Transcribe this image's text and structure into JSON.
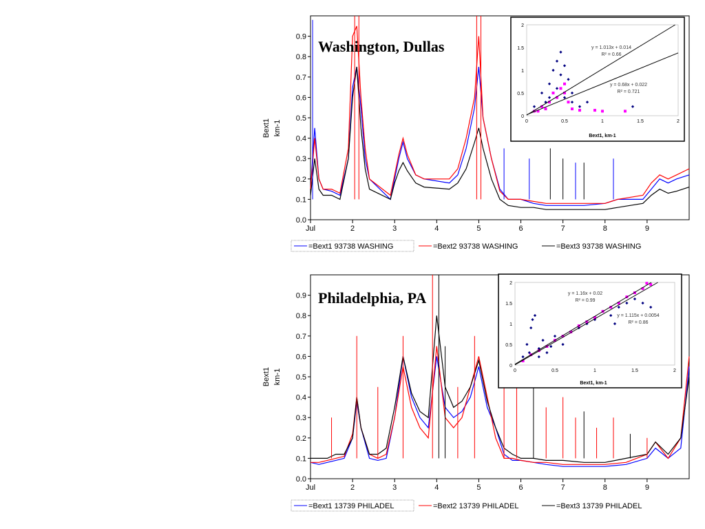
{
  "chart_data": [
    {
      "type": "line",
      "title": "Washington, Dullas",
      "ylabel_line1": "Bext1",
      "ylabel_line2": "km-1",
      "ylim": [
        0,
        1.0
      ],
      "xlim": [
        1,
        10
      ],
      "y_ticks": [
        "0.0",
        "0.1",
        "0.2",
        "0.3",
        "0.4",
        "0.5",
        "0.6",
        "0.7",
        "0.8",
        "0.9"
      ],
      "x_ticks": [
        "Jul",
        "2",
        "3",
        "4",
        "5",
        "6",
        "7",
        "8",
        "9"
      ],
      "legend": [
        "=Bext1 93738 WASHING",
        "=Bext2 93738 WASHING",
        "=Bext3 93738 WASHING"
      ],
      "series": [
        {
          "name": "=Bext1 93738 WASHING",
          "color": "#0000ff",
          "x": [
            1.0,
            1.1,
            1.2,
            1.3,
            1.5,
            1.7,
            1.9,
            2.0,
            2.1,
            2.2,
            2.3,
            2.4,
            2.9,
            3.0,
            3.1,
            3.2,
            3.3,
            3.5,
            3.7,
            4.3,
            4.5,
            4.7,
            4.9,
            5.0,
            5.1,
            5.3,
            5.5,
            5.7,
            6.0,
            6.3,
            6.6,
            7.0,
            7.5,
            8.0,
            8.3,
            8.9,
            9.1,
            9.3,
            9.5,
            9.7,
            10.0
          ],
          "y": [
            0.15,
            0.45,
            0.2,
            0.15,
            0.14,
            0.12,
            0.3,
            0.65,
            0.75,
            0.55,
            0.3,
            0.2,
            0.1,
            0.2,
            0.3,
            0.38,
            0.3,
            0.22,
            0.2,
            0.18,
            0.22,
            0.35,
            0.55,
            0.75,
            0.5,
            0.3,
            0.15,
            0.1,
            0.1,
            0.08,
            0.07,
            0.07,
            0.07,
            0.08,
            0.1,
            0.1,
            0.15,
            0.2,
            0.18,
            0.2,
            0.22
          ]
        },
        {
          "name": "=Bext2 93738 WASHING",
          "color": "#ff0000",
          "x": [
            1.0,
            1.1,
            1.2,
            1.3,
            1.5,
            1.7,
            1.9,
            2.0,
            2.1,
            2.2,
            2.3,
            2.4,
            2.9,
            3.0,
            3.1,
            3.2,
            3.3,
            3.5,
            3.7,
            4.3,
            4.5,
            4.7,
            4.9,
            5.0,
            5.1,
            5.3,
            5.5,
            5.7,
            6.0,
            6.3,
            6.6,
            7.0,
            7.5,
            8.0,
            8.3,
            8.9,
            9.1,
            9.3,
            9.5,
            9.7,
            10.0
          ],
          "y": [
            0.15,
            0.4,
            0.2,
            0.15,
            0.15,
            0.13,
            0.35,
            0.9,
            0.95,
            0.6,
            0.35,
            0.2,
            0.12,
            0.22,
            0.32,
            0.4,
            0.32,
            0.22,
            0.2,
            0.2,
            0.25,
            0.4,
            0.6,
            0.9,
            0.5,
            0.3,
            0.14,
            0.1,
            0.1,
            0.09,
            0.08,
            0.08,
            0.08,
            0.08,
            0.1,
            0.12,
            0.18,
            0.22,
            0.2,
            0.22,
            0.25
          ]
        },
        {
          "name": "=Bext3 93738 WASHING",
          "color": "#000000",
          "x": [
            1.0,
            1.1,
            1.2,
            1.3,
            1.5,
            1.7,
            1.9,
            2.0,
            2.1,
            2.2,
            2.3,
            2.4,
            2.9,
            3.0,
            3.1,
            3.2,
            3.3,
            3.5,
            3.7,
            4.3,
            4.5,
            4.7,
            4.9,
            5.0,
            5.1,
            5.3,
            5.5,
            5.7,
            6.0,
            6.3,
            6.6,
            7.0,
            7.5,
            8.0,
            8.3,
            8.9,
            9.1,
            9.3,
            9.5,
            9.7,
            10.0
          ],
          "y": [
            0.12,
            0.3,
            0.15,
            0.12,
            0.12,
            0.1,
            0.3,
            0.6,
            0.75,
            0.45,
            0.25,
            0.15,
            0.1,
            0.18,
            0.24,
            0.28,
            0.24,
            0.18,
            0.16,
            0.15,
            0.18,
            0.25,
            0.38,
            0.45,
            0.35,
            0.2,
            0.1,
            0.07,
            0.06,
            0.06,
            0.05,
            0.05,
            0.05,
            0.05,
            0.06,
            0.08,
            0.12,
            0.15,
            0.13,
            0.14,
            0.16
          ]
        }
      ],
      "spikes": [
        {
          "x": 1.05,
          "y": 0.98,
          "color": "#0000ff"
        },
        {
          "x": 2.05,
          "y": 1.0,
          "color": "#ff0000"
        },
        {
          "x": 2.15,
          "y": 1.0,
          "color": "#ff0000"
        },
        {
          "x": 4.95,
          "y": 1.0,
          "color": "#ff0000"
        },
        {
          "x": 5.05,
          "y": 1.0,
          "color": "#ff0000"
        },
        {
          "x": 5.6,
          "y": 0.35,
          "color": "#0000ff"
        },
        {
          "x": 6.2,
          "y": 0.3,
          "color": "#0000ff"
        },
        {
          "x": 6.7,
          "y": 0.35,
          "color": "#000000"
        },
        {
          "x": 7.0,
          "y": 0.3,
          "color": "#000000"
        },
        {
          "x": 7.3,
          "y": 0.28,
          "color": "#0000ff"
        },
        {
          "x": 7.5,
          "y": 0.28,
          "color": "#000000"
        },
        {
          "x": 8.2,
          "y": 0.3,
          "color": "#0000ff"
        }
      ],
      "inset": {
        "xlabel": "Bext1,  km-1",
        "x_ticks": [
          "0",
          "0.5",
          "1",
          "1.5",
          "2"
        ],
        "y_ticks": [
          "0",
          "0.5",
          "1",
          "1.5",
          "2"
        ],
        "xlim": [
          0,
          2
        ],
        "ylim": [
          0,
          2
        ],
        "eq1": "y = 1.013x + 0.014",
        "r1": "R² = 0.66",
        "eq2": "y = 0.68x + 0.022",
        "r2": "R² = 0.721",
        "fits": [
          {
            "slope": 1.013,
            "intercept": 0.014,
            "color": "#000000"
          },
          {
            "slope": 0.68,
            "intercept": 0.022,
            "color": "#000000"
          }
        ],
        "blue_points": [
          [
            0.1,
            0.2
          ],
          [
            0.2,
            0.5
          ],
          [
            0.3,
            0.7
          ],
          [
            0.35,
            1.0
          ],
          [
            0.4,
            1.2
          ],
          [
            0.45,
            0.9
          ],
          [
            0.5,
            1.1
          ],
          [
            0.55,
            0.8
          ],
          [
            0.6,
            0.5
          ],
          [
            0.3,
            0.4
          ],
          [
            0.25,
            0.3
          ],
          [
            0.4,
            0.6
          ],
          [
            0.5,
            0.4
          ],
          [
            0.7,
            0.2
          ],
          [
            0.8,
            0.3
          ],
          [
            1.0,
            0.1
          ],
          [
            1.4,
            0.2
          ],
          [
            0.45,
            1.4
          ],
          [
            0.2,
            0.2
          ],
          [
            0.6,
            0.3
          ]
        ],
        "magenta_points": [
          [
            0.1,
            0.1
          ],
          [
            0.2,
            0.2
          ],
          [
            0.3,
            0.3
          ],
          [
            0.4,
            0.4
          ],
          [
            0.5,
            0.5
          ],
          [
            0.45,
            0.6
          ],
          [
            0.35,
            0.5
          ],
          [
            0.55,
            0.3
          ],
          [
            0.6,
            0.15
          ],
          [
            0.7,
            0.12
          ],
          [
            0.9,
            0.12
          ],
          [
            1.0,
            0.1
          ],
          [
            1.3,
            0.1
          ],
          [
            0.25,
            0.15
          ],
          [
            0.15,
            0.1
          ],
          [
            0.5,
            0.7
          ]
        ]
      }
    },
    {
      "type": "line",
      "title": "Philadelphia, PA",
      "ylabel_line1": "Bext1",
      "ylabel_line2": "km-1",
      "ylim": [
        0,
        1.0
      ],
      "xlim": [
        1,
        10
      ],
      "y_ticks": [
        "0.0",
        "0.1",
        "0.2",
        "0.3",
        "0.4",
        "0.5",
        "0.6",
        "0.7",
        "0.8",
        "0.9"
      ],
      "x_ticks": [
        "Jul",
        "2",
        "3",
        "4",
        "5",
        "6",
        "7",
        "8",
        "9"
      ],
      "legend": [
        "=Bext1 13739 PHILADEL",
        "=Bext2 13739 PHILADEL",
        "=Bext3 13739 PHILADEL"
      ],
      "series": [
        {
          "name": "=Bext1 13739 PHILADEL",
          "color": "#0000ff",
          "x": [
            1.0,
            1.2,
            1.4,
            1.6,
            1.8,
            2.0,
            2.1,
            2.2,
            2.4,
            2.6,
            2.8,
            3.0,
            3.2,
            3.4,
            3.6,
            3.8,
            4.0,
            4.2,
            4.4,
            4.6,
            4.8,
            5.0,
            5.2,
            5.4,
            5.6,
            5.8,
            6.0,
            6.3,
            6.6,
            7.0,
            7.5,
            8.0,
            8.5,
            9.0,
            9.2,
            9.5,
            9.8,
            10.0
          ],
          "y": [
            0.08,
            0.07,
            0.08,
            0.09,
            0.1,
            0.2,
            0.38,
            0.25,
            0.1,
            0.09,
            0.1,
            0.3,
            0.6,
            0.4,
            0.3,
            0.25,
            0.6,
            0.35,
            0.3,
            0.33,
            0.4,
            0.55,
            0.35,
            0.25,
            0.12,
            0.09,
            0.09,
            0.08,
            0.07,
            0.06,
            0.06,
            0.06,
            0.07,
            0.1,
            0.15,
            0.1,
            0.15,
            0.55
          ]
        },
        {
          "name": "=Bext2 13739 PHILADEL",
          "color": "#ff0000",
          "x": [
            1.0,
            1.2,
            1.4,
            1.6,
            1.8,
            2.0,
            2.1,
            2.2,
            2.4,
            2.6,
            2.8,
            3.0,
            3.2,
            3.4,
            3.6,
            3.8,
            4.0,
            4.2,
            4.4,
            4.6,
            4.8,
            5.0,
            5.2,
            5.4,
            5.6,
            5.8,
            6.0,
            6.3,
            6.6,
            7.0,
            7.5,
            8.0,
            8.5,
            9.0,
            9.2,
            9.5,
            9.8,
            10.0
          ],
          "y": [
            0.08,
            0.08,
            0.09,
            0.1,
            0.11,
            0.22,
            0.4,
            0.25,
            0.12,
            0.1,
            0.12,
            0.3,
            0.55,
            0.35,
            0.25,
            0.2,
            0.65,
            0.3,
            0.25,
            0.3,
            0.45,
            0.6,
            0.4,
            0.2,
            0.1,
            0.1,
            0.09,
            0.08,
            0.08,
            0.07,
            0.07,
            0.07,
            0.08,
            0.12,
            0.18,
            0.1,
            0.2,
            0.6
          ]
        },
        {
          "name": "=Bext3 13739 PHILADEL",
          "color": "#000000",
          "x": [
            1.0,
            1.2,
            1.4,
            1.6,
            1.8,
            2.0,
            2.1,
            2.2,
            2.4,
            2.6,
            2.8,
            3.0,
            3.2,
            3.4,
            3.6,
            3.8,
            4.0,
            4.2,
            4.4,
            4.6,
            4.8,
            5.0,
            5.2,
            5.4,
            5.6,
            5.8,
            6.0,
            6.3,
            6.6,
            7.0,
            7.5,
            8.0,
            8.5,
            9.0,
            9.2,
            9.5,
            9.8,
            10.0
          ],
          "y": [
            0.1,
            0.1,
            0.1,
            0.12,
            0.12,
            0.2,
            0.4,
            0.25,
            0.12,
            0.12,
            0.15,
            0.35,
            0.6,
            0.42,
            0.33,
            0.3,
            0.8,
            0.45,
            0.35,
            0.38,
            0.45,
            0.58,
            0.38,
            0.25,
            0.15,
            0.12,
            0.1,
            0.1,
            0.09,
            0.09,
            0.08,
            0.08,
            0.1,
            0.12,
            0.18,
            0.12,
            0.2,
            0.5
          ]
        }
      ],
      "spikes": [
        {
          "x": 1.5,
          "y": 0.3,
          "color": "#ff0000"
        },
        {
          "x": 2.1,
          "y": 0.7,
          "color": "#ff0000"
        },
        {
          "x": 2.6,
          "y": 0.45,
          "color": "#ff0000"
        },
        {
          "x": 3.2,
          "y": 0.7,
          "color": "#ff0000"
        },
        {
          "x": 3.9,
          "y": 1.0,
          "color": "#ff0000"
        },
        {
          "x": 4.05,
          "y": 1.0,
          "color": "#000000"
        },
        {
          "x": 4.2,
          "y": 0.65,
          "color": "#000000"
        },
        {
          "x": 4.5,
          "y": 0.45,
          "color": "#ff0000"
        },
        {
          "x": 4.9,
          "y": 0.7,
          "color": "#ff0000"
        },
        {
          "x": 5.6,
          "y": 0.55,
          "color": "#ff0000"
        },
        {
          "x": 5.9,
          "y": 0.45,
          "color": "#ff0000"
        },
        {
          "x": 6.3,
          "y": 0.45,
          "color": "#000000"
        },
        {
          "x": 6.6,
          "y": 0.35,
          "color": "#ff0000"
        },
        {
          "x": 7.0,
          "y": 0.4,
          "color": "#ff0000"
        },
        {
          "x": 7.3,
          "y": 0.3,
          "color": "#ff0000"
        },
        {
          "x": 7.5,
          "y": 0.33,
          "color": "#000000"
        },
        {
          "x": 7.8,
          "y": 0.25,
          "color": "#ff0000"
        },
        {
          "x": 8.2,
          "y": 0.3,
          "color": "#ff0000"
        },
        {
          "x": 8.6,
          "y": 0.22,
          "color": "#000000"
        },
        {
          "x": 9.0,
          "y": 0.2,
          "color": "#ff0000"
        }
      ],
      "inset": {
        "xlabel": "Bext1,  km-1",
        "x_ticks": [
          "0",
          "0.5",
          "1",
          "1.5",
          "2"
        ],
        "y_ticks": [
          "0",
          "0.5",
          "1",
          "1.5",
          "2"
        ],
        "xlim": [
          0,
          2
        ],
        "ylim": [
          0,
          2
        ],
        "eq1": "y = 1.16x + 0.02",
        "r1": "R² = 0.99",
        "eq2": "y = 1.115x + 0.0054",
        "r2": "R² = 0.86",
        "fits": [
          {
            "slope": 1.16,
            "intercept": 0.02,
            "color": "#000000"
          },
          {
            "slope": 1.115,
            "intercept": 0.0054,
            "color": "#000000"
          }
        ],
        "blue_points": [
          [
            0.1,
            0.2
          ],
          [
            0.15,
            0.5
          ],
          [
            0.2,
            0.9
          ],
          [
            0.25,
            1.2
          ],
          [
            0.3,
            0.4
          ],
          [
            0.35,
            0.6
          ],
          [
            0.4,
            0.3
          ],
          [
            0.5,
            0.7
          ],
          [
            0.6,
            0.5
          ],
          [
            0.7,
            0.8
          ],
          [
            0.8,
            0.9
          ],
          [
            0.9,
            1.0
          ],
          [
            1.0,
            1.1
          ],
          [
            1.1,
            1.3
          ],
          [
            1.2,
            1.2
          ],
          [
            1.3,
            1.4
          ],
          [
            1.4,
            1.5
          ],
          [
            1.5,
            1.6
          ],
          [
            1.6,
            1.5
          ],
          [
            1.7,
            1.4
          ],
          [
            0.22,
            1.1
          ],
          [
            0.3,
            0.2
          ],
          [
            0.45,
            0.45
          ],
          [
            1.25,
            1.0
          ],
          [
            0.18,
            0.3
          ]
        ],
        "magenta_points": [
          [
            0.1,
            0.1
          ],
          [
            0.2,
            0.25
          ],
          [
            0.3,
            0.35
          ],
          [
            0.4,
            0.45
          ],
          [
            0.5,
            0.6
          ],
          [
            0.6,
            0.7
          ],
          [
            0.7,
            0.8
          ],
          [
            0.8,
            0.95
          ],
          [
            0.9,
            1.05
          ],
          [
            1.0,
            1.15
          ],
          [
            1.1,
            1.3
          ],
          [
            1.2,
            1.4
          ],
          [
            1.3,
            1.5
          ],
          [
            1.4,
            1.65
          ],
          [
            1.5,
            1.75
          ],
          [
            1.6,
            1.85
          ],
          [
            1.7,
            1.95
          ],
          [
            1.65,
            1.98
          ]
        ]
      }
    }
  ]
}
